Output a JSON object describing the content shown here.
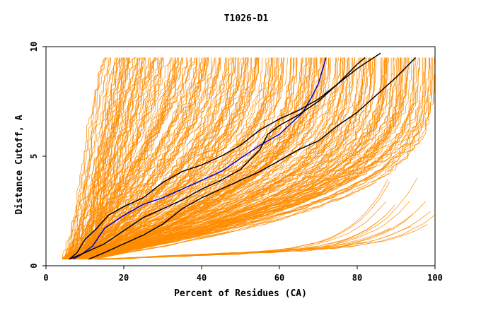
{
  "chart_data": {
    "type": "line",
    "title": "T1026-D1",
    "xlabel": "Percent of Residues (CA)",
    "ylabel": "Distance Cutoff, A",
    "xlim": [
      0,
      100
    ],
    "ylim": [
      0,
      10
    ],
    "x_ticks": [
      "0",
      "20",
      "40",
      "60",
      "80",
      "100"
    ],
    "y_ticks": [
      "0",
      "5",
      "10"
    ],
    "grid": false,
    "legend": "none",
    "colors": {
      "background_models": "#FF8C00",
      "highlight_blue": "#0000CC",
      "highlight_black": "#000000"
    },
    "background_model_count": 300,
    "highlighted_series": [
      {
        "color": "#0000CC",
        "points": [
          [
            7,
            0.3
          ],
          [
            9,
            0.5
          ],
          [
            12,
            0.9
          ],
          [
            15,
            1.7
          ],
          [
            20,
            2.3
          ],
          [
            25,
            2.8
          ],
          [
            30,
            3.1
          ],
          [
            35,
            3.5
          ],
          [
            40,
            3.9
          ],
          [
            45,
            4.3
          ],
          [
            50,
            4.9
          ],
          [
            55,
            5.5
          ],
          [
            60,
            6.0
          ],
          [
            63,
            6.5
          ],
          [
            66,
            7.0
          ],
          [
            68,
            7.6
          ],
          [
            70,
            8.3
          ],
          [
            72,
            9.5
          ]
        ]
      },
      {
        "color": "#000000",
        "points": [
          [
            6,
            0.3
          ],
          [
            8,
            0.6
          ],
          [
            10,
            1.2
          ],
          [
            13,
            1.7
          ],
          [
            16,
            2.3
          ],
          [
            20,
            2.7
          ],
          [
            25,
            3.1
          ],
          [
            30,
            3.8
          ],
          [
            35,
            4.3
          ],
          [
            40,
            4.6
          ],
          [
            45,
            5.0
          ],
          [
            50,
            5.5
          ],
          [
            55,
            6.2
          ],
          [
            60,
            6.7
          ],
          [
            65,
            7.1
          ],
          [
            70,
            7.6
          ],
          [
            75,
            8.3
          ],
          [
            80,
            9.2
          ],
          [
            82,
            9.5
          ]
        ]
      },
      {
        "color": "#000000",
        "points": [
          [
            6,
            0.3
          ],
          [
            10,
            0.6
          ],
          [
            15,
            1.0
          ],
          [
            20,
            1.6
          ],
          [
            25,
            2.2
          ],
          [
            30,
            2.6
          ],
          [
            35,
            3.0
          ],
          [
            40,
            3.5
          ],
          [
            45,
            3.9
          ],
          [
            50,
            4.4
          ],
          [
            55,
            5.3
          ],
          [
            57,
            6.0
          ],
          [
            60,
            6.4
          ],
          [
            65,
            6.9
          ],
          [
            70,
            7.5
          ],
          [
            75,
            8.3
          ],
          [
            80,
            9.0
          ],
          [
            86,
            9.7
          ]
        ]
      },
      {
        "color": "#000000",
        "points": [
          [
            11,
            0.3
          ],
          [
            15,
            0.6
          ],
          [
            20,
            1.0
          ],
          [
            25,
            1.4
          ],
          [
            30,
            1.9
          ],
          [
            35,
            2.6
          ],
          [
            40,
            3.1
          ],
          [
            45,
            3.5
          ],
          [
            50,
            3.9
          ],
          [
            55,
            4.3
          ],
          [
            60,
            4.8
          ],
          [
            65,
            5.3
          ],
          [
            70,
            5.7
          ],
          [
            75,
            6.4
          ],
          [
            80,
            7.0
          ],
          [
            85,
            7.8
          ],
          [
            90,
            8.6
          ],
          [
            95,
            9.5
          ]
        ]
      }
    ]
  }
}
